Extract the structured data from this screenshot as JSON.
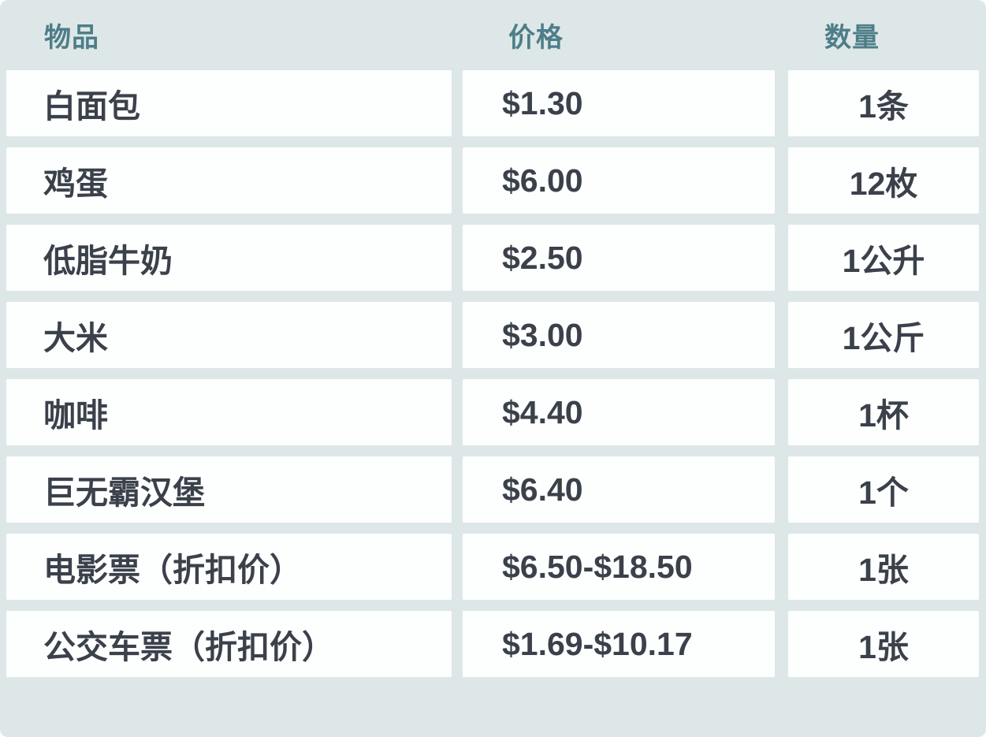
{
  "chart_data": {
    "type": "table",
    "columns": [
      "物品",
      "价格",
      "数量"
    ],
    "rows": [
      [
        "白面包",
        "$1.30",
        "1条"
      ],
      [
        "鸡蛋",
        "$6.00",
        "12枚"
      ],
      [
        "低脂牛奶",
        "$2.50",
        "1公升"
      ],
      [
        "大米",
        "$3.00",
        "1公斤"
      ],
      [
        "咖啡",
        "$4.40",
        "1杯"
      ],
      [
        "巨无霸汉堡",
        "$6.40",
        "1个"
      ],
      [
        "电影票（折扣价）",
        "$6.50-$18.50",
        "1张"
      ],
      [
        "公交车票（折扣价）",
        "$1.69-$10.17",
        "1张"
      ]
    ],
    "layout": {
      "header_position": "top",
      "grid": "off",
      "quantity_column_alignment": "center",
      "item_price_alignment": "left"
    }
  },
  "colors": {
    "page_background": "#dee7e8",
    "cell_background": "#fdfefe",
    "header_text": "#4d7e88",
    "body_text": "#3b414b"
  }
}
